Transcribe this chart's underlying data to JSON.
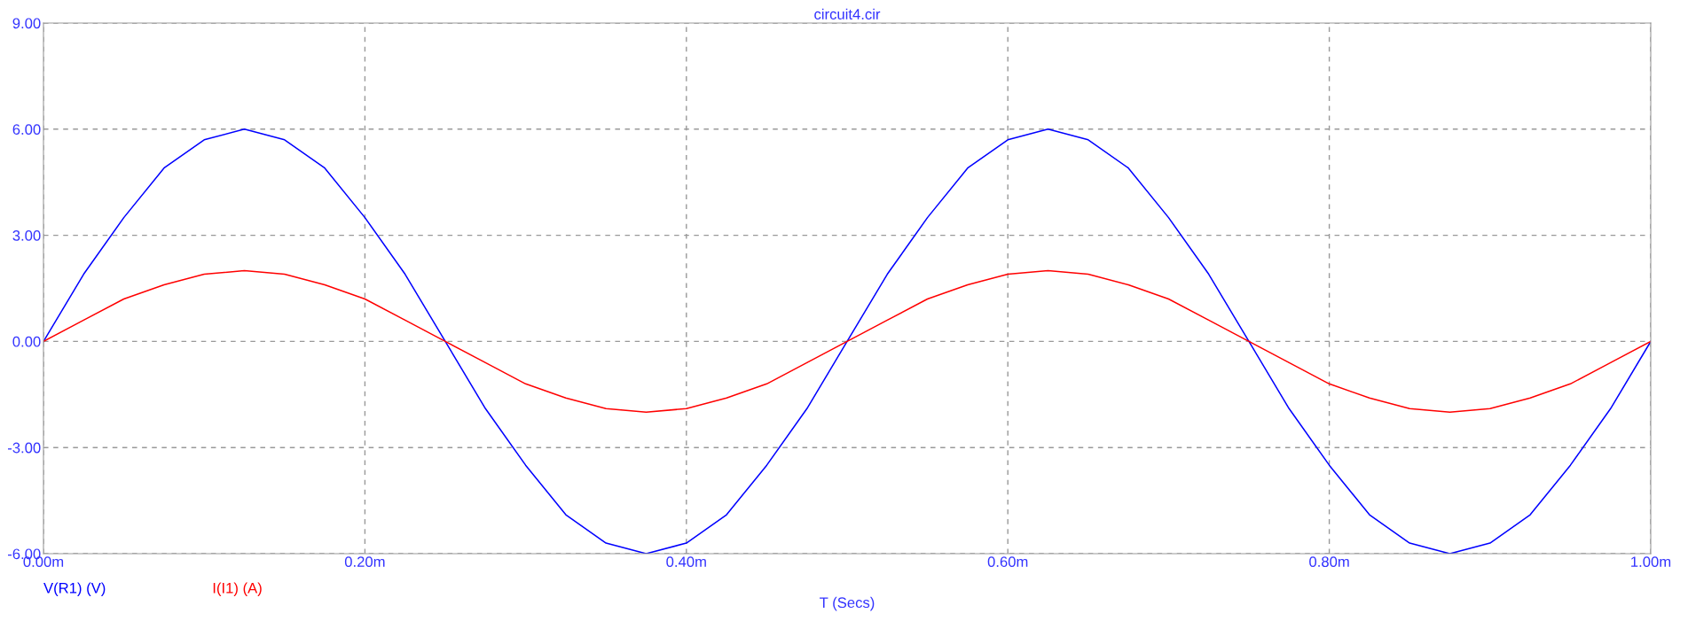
{
  "chart_data": {
    "type": "line",
    "title": "circuit4.cir",
    "xlabel": "T (Secs)",
    "x": [
      0,
      0.025,
      0.05,
      0.075,
      0.1,
      0.125,
      0.15,
      0.175,
      0.2,
      0.225,
      0.25,
      0.275,
      0.3,
      0.325,
      0.35,
      0.375,
      0.4,
      0.425,
      0.45,
      0.475,
      0.5,
      0.525,
      0.55,
      0.575,
      0.6,
      0.625,
      0.65,
      0.675,
      0.7,
      0.725,
      0.75,
      0.775,
      0.8,
      0.825,
      0.85,
      0.875,
      0.9,
      0.925,
      0.95,
      0.975,
      1.0
    ],
    "series": [
      {
        "name": "V(R1) (V)",
        "color": "#0000ff",
        "values": [
          0,
          1.9,
          3.5,
          4.9,
          5.7,
          6.0,
          5.7,
          4.9,
          3.5,
          1.9,
          0,
          -1.9,
          -3.5,
          -4.9,
          -5.7,
          -6.0,
          -5.7,
          -4.9,
          -3.5,
          -1.9,
          0,
          1.9,
          3.5,
          4.9,
          5.7,
          6.0,
          5.7,
          4.9,
          3.5,
          1.9,
          0,
          -1.9,
          -3.5,
          -4.9,
          -5.7,
          -6.0,
          -5.7,
          -4.9,
          -3.5,
          -1.9,
          0
        ]
      },
      {
        "name": "I(I1) (A)",
        "color": "#ff0000",
        "values": [
          0,
          0.6,
          1.2,
          1.6,
          1.9,
          2.0,
          1.9,
          1.6,
          1.2,
          0.6,
          0,
          -0.6,
          -1.2,
          -1.6,
          -1.9,
          -2.0,
          -1.9,
          -1.6,
          -1.2,
          -0.6,
          0,
          0.6,
          1.2,
          1.6,
          1.9,
          2.0,
          1.9,
          1.6,
          1.2,
          0.6,
          0,
          -0.6,
          -1.2,
          -1.6,
          -1.9,
          -2.0,
          -1.9,
          -1.6,
          -1.2,
          -0.6,
          0
        ]
      }
    ],
    "xlim": [
      0,
      1.0
    ],
    "xticks": [
      {
        "value": 0,
        "label": "0.00m"
      },
      {
        "value": 0.2,
        "label": "0.20m"
      },
      {
        "value": 0.4,
        "label": "0.40m"
      },
      {
        "value": 0.6,
        "label": "0.60m"
      },
      {
        "value": 0.8,
        "label": "0.80m"
      },
      {
        "value": 1.0,
        "label": "1.00m"
      }
    ],
    "ylim": [
      -6,
      9
    ],
    "yticks": [
      {
        "value": -6,
        "label": "-6.00"
      },
      {
        "value": -3,
        "label": "-3.00"
      },
      {
        "value": 0,
        "label": "0.00"
      },
      {
        "value": 3,
        "label": "3.00"
      },
      {
        "value": 6,
        "label": "6.00"
      },
      {
        "value": 9,
        "label": "9.00"
      }
    ],
    "grid": true,
    "legend": "bottom left",
    "marker": "none",
    "line_style": "solid"
  }
}
